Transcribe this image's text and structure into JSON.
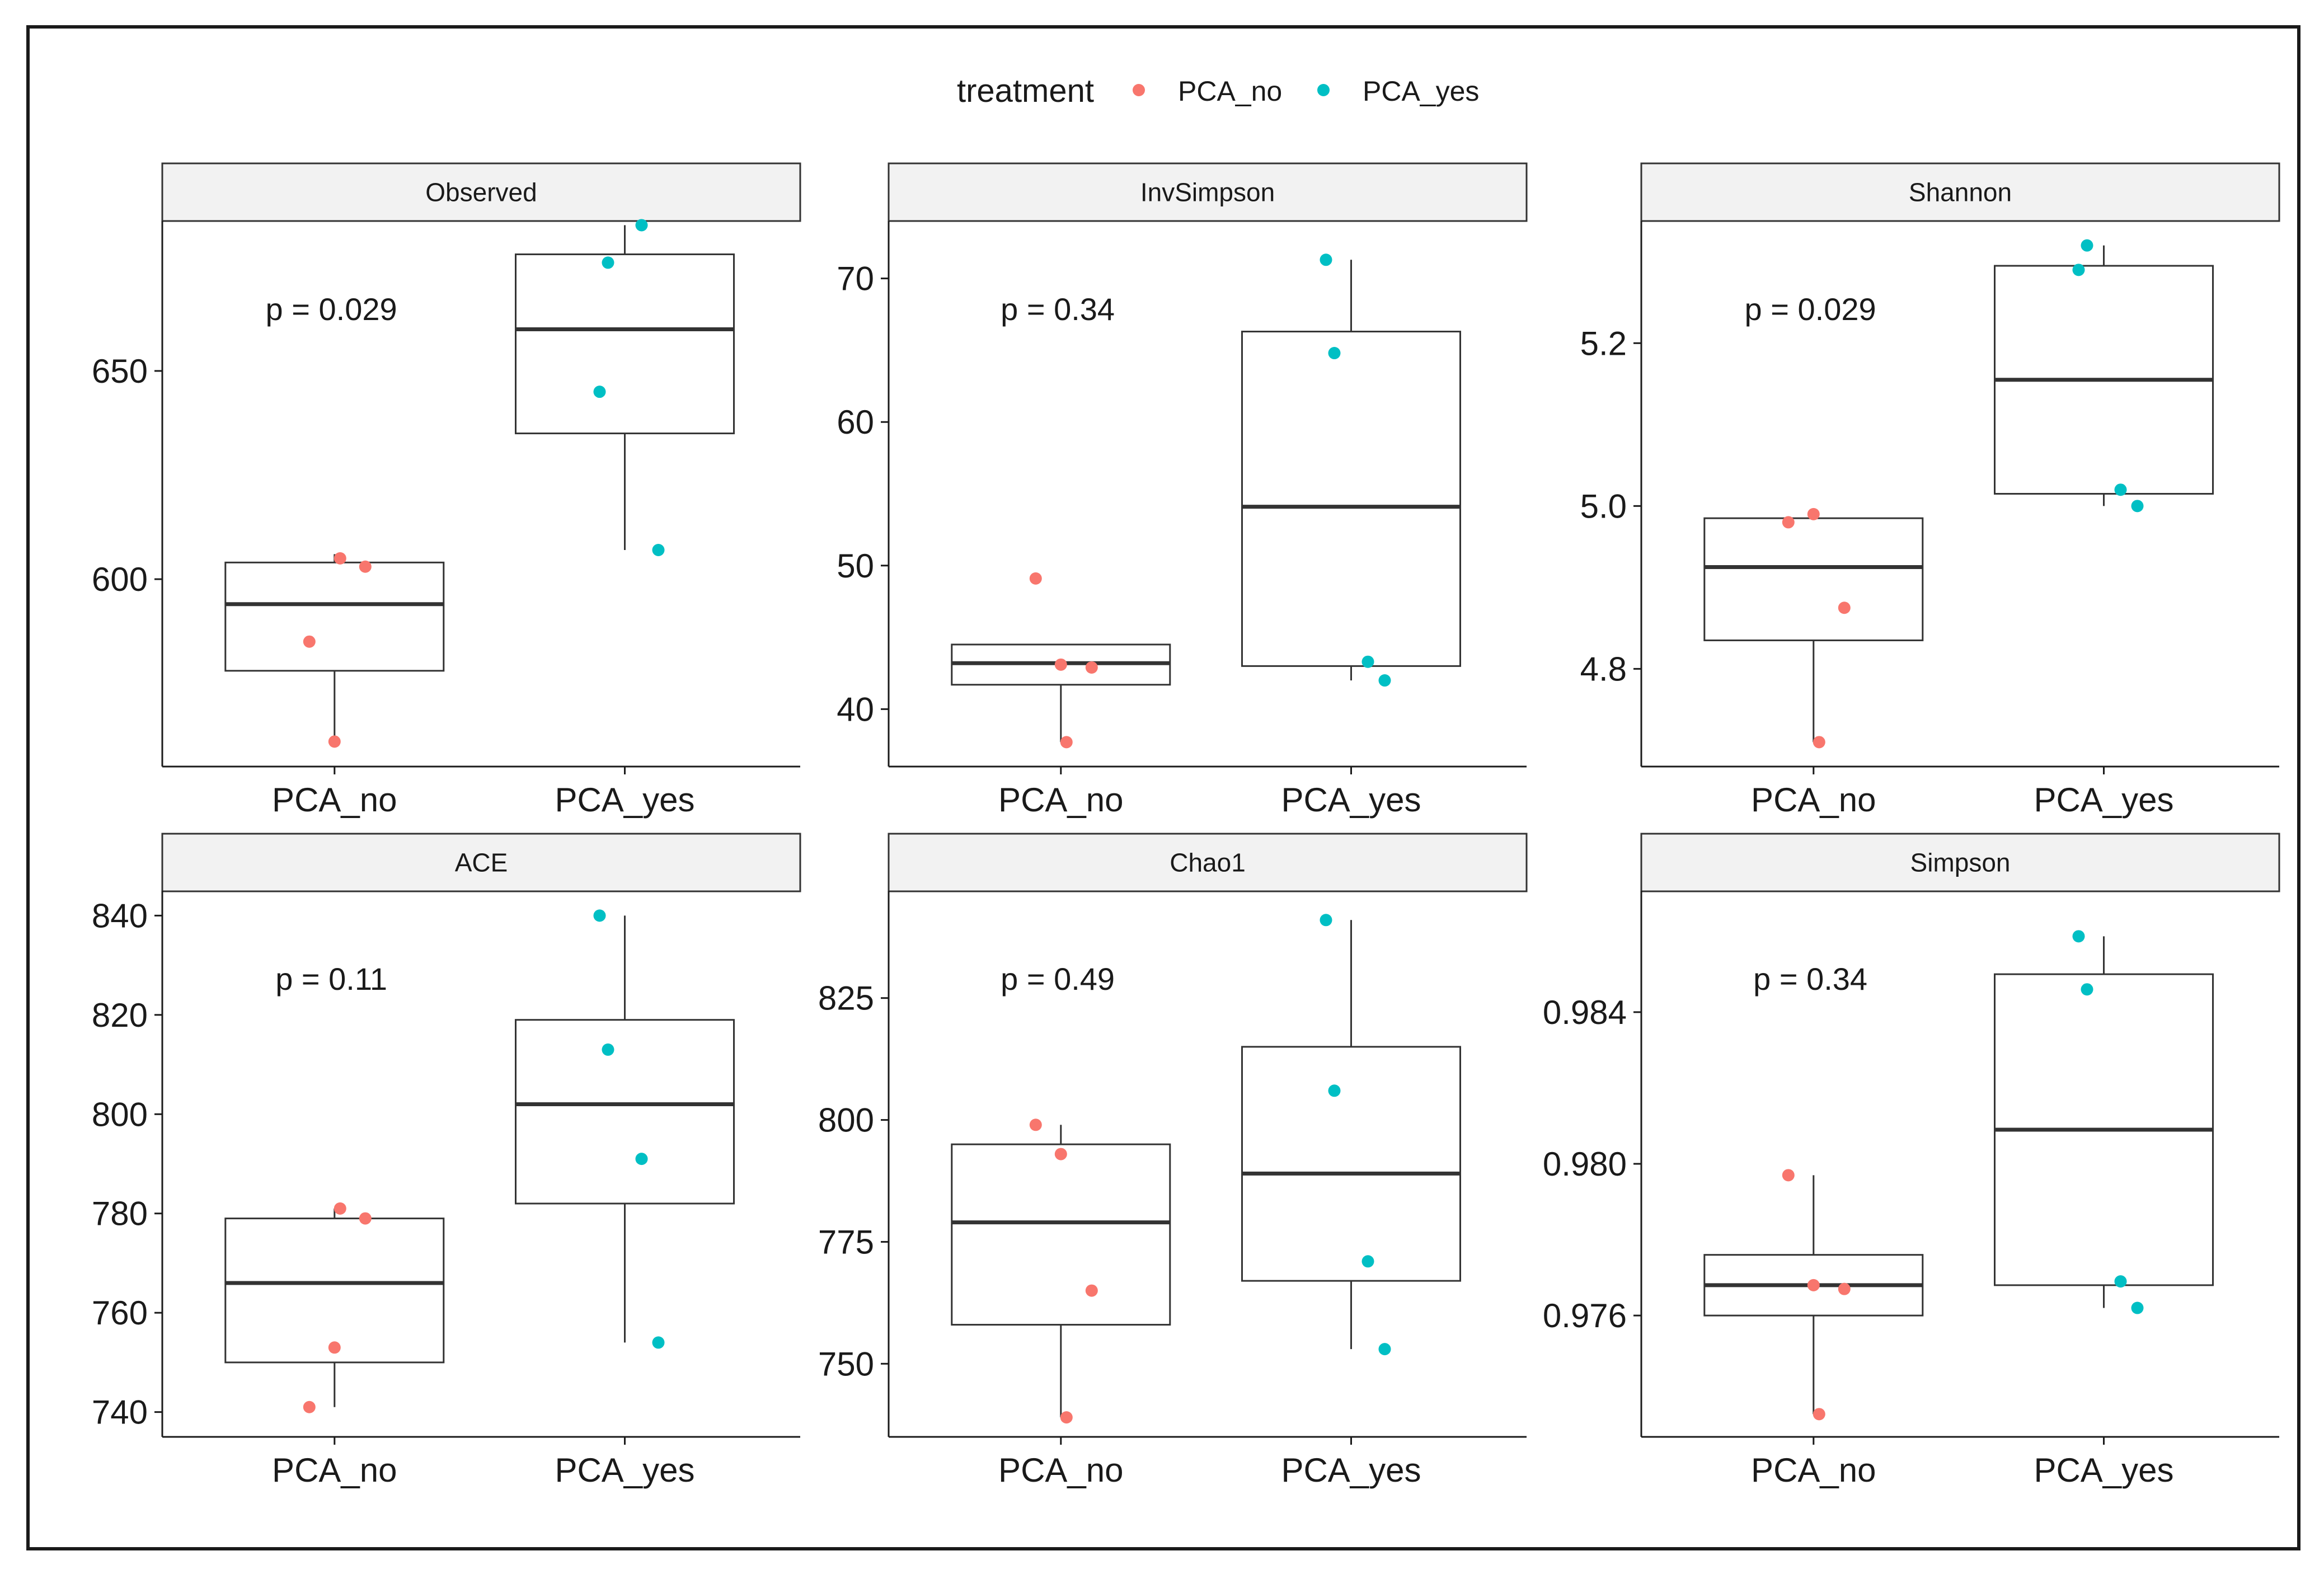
{
  "chart_data": {
    "type": "box",
    "title": "",
    "legend": {
      "title": "treatment",
      "placement": "top",
      "entries": [
        {
          "label": "PCA_no",
          "color": "#F8766D"
        },
        {
          "label": "PCA_yes",
          "color": "#00BFC4"
        }
      ]
    },
    "categories": [
      "PCA_no",
      "PCA_yes"
    ],
    "panels": [
      {
        "title": "Observed",
        "ylim": [
          555,
          686
        ],
        "yticks": [
          600,
          650
        ],
        "ytick_labels": [
          "600",
          "650"
        ],
        "pvalue": "p = 0.029",
        "groups": [
          {
            "name": "PCA_no",
            "min": 560,
            "q1": 578,
            "median": 594,
            "q3": 604,
            "max": 606,
            "points": [
              585,
              561,
              603,
              605
            ]
          },
          {
            "name": "PCA_yes",
            "min": 607,
            "q1": 635,
            "median": 660,
            "q3": 678,
            "max": 685,
            "points": [
              645,
              676,
              685,
              607
            ]
          }
        ]
      },
      {
        "title": "InvSimpson",
        "ylim": [
          36,
          74
        ],
        "yticks": [
          40,
          50,
          60,
          70
        ],
        "ytick_labels": [
          "40",
          "50",
          "60",
          "70"
        ],
        "pvalue": "p = 0.34",
        "groups": [
          {
            "name": "PCA_no",
            "min": 37.7,
            "q1": 41.7,
            "median": 43.2,
            "q3": 44.5,
            "max": 44.5,
            "points": [
              49.1,
              43.1,
              42.9,
              37.7
            ]
          },
          {
            "name": "PCA_yes",
            "min": 42,
            "q1": 43,
            "median": 54.1,
            "q3": 66.3,
            "max": 71.3,
            "points": [
              71.3,
              64.8,
              43.3,
              42
            ]
          }
        ]
      },
      {
        "title": "Shannon",
        "ylim": [
          4.68,
          5.35
        ],
        "yticks": [
          4.8,
          5.0,
          5.2
        ],
        "ytick_labels": [
          "4.8",
          "5.0",
          "5.2"
        ],
        "pvalue": "p = 0.029",
        "groups": [
          {
            "name": "PCA_no",
            "min": 4.71,
            "q1": 4.835,
            "median": 4.925,
            "q3": 4.985,
            "max": 4.99,
            "points": [
              4.98,
              4.99,
              4.875,
              4.71
            ]
          },
          {
            "name": "PCA_yes",
            "min": 5.0,
            "q1": 5.015,
            "median": 5.155,
            "q3": 5.295,
            "max": 5.32,
            "points": [
              5.29,
              5.32,
              5.02,
              5.0
            ]
          }
        ]
      },
      {
        "title": "ACE",
        "ylim": [
          735,
          845
        ],
        "yticks": [
          740,
          760,
          780,
          800,
          820,
          840
        ],
        "ytick_labels": [
          "740",
          "760",
          "780",
          "800",
          "820",
          "840"
        ],
        "pvalue": "p = 0.11",
        "groups": [
          {
            "name": "PCA_no",
            "min": 741,
            "q1": 750,
            "median": 766,
            "q3": 779,
            "max": 781,
            "points": [
              741,
              753,
              779,
              781
            ]
          },
          {
            "name": "PCA_yes",
            "min": 754,
            "q1": 782,
            "median": 802,
            "q3": 819,
            "max": 840,
            "points": [
              840,
              813,
              791,
              754
            ]
          }
        ]
      },
      {
        "title": "Chao1",
        "ylim": [
          735,
          847
        ],
        "yticks": [
          750,
          775,
          800,
          825
        ],
        "ytick_labels": [
          "750",
          "775",
          "800",
          "825"
        ],
        "pvalue": "p = 0.49",
        "groups": [
          {
            "name": "PCA_no",
            "min": 739,
            "q1": 758,
            "median": 779,
            "q3": 795,
            "max": 799,
            "points": [
              799,
              793,
              765,
              739
            ]
          },
          {
            "name": "PCA_yes",
            "min": 753,
            "q1": 767,
            "median": 789,
            "q3": 815,
            "max": 841,
            "points": [
              841,
              806,
              771,
              753
            ]
          }
        ]
      },
      {
        "title": "Simpson",
        "ylim": [
          0.9728,
          0.9872
        ],
        "yticks": [
          0.976,
          0.98,
          0.984
        ],
        "ytick_labels": [
          "0.976",
          "0.980",
          "0.984"
        ],
        "pvalue": "p = 0.34",
        "groups": [
          {
            "name": "PCA_no",
            "min": 0.9734,
            "q1": 0.976,
            "median": 0.9768,
            "q3": 0.9776,
            "max": 0.9797,
            "points": [
              0.9797,
              0.9768,
              0.9767,
              0.9734
            ]
          },
          {
            "name": "PCA_yes",
            "min": 0.9762,
            "q1": 0.9768,
            "median": 0.9809,
            "q3": 0.985,
            "max": 0.986,
            "points": [
              0.986,
              0.9846,
              0.9769,
              0.9762
            ]
          }
        ]
      }
    ]
  }
}
